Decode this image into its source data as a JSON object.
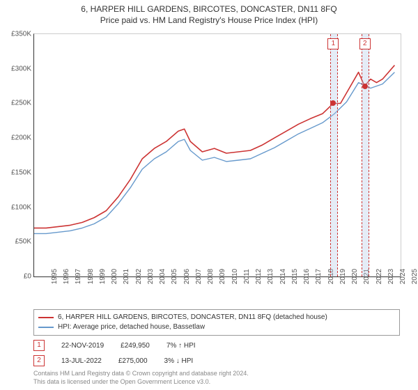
{
  "title": "6, HARPER HILL GARDENS, BIRCOTES, DONCASTER, DN11 8FQ",
  "subtitle": "Price paid vs. HM Land Registry's House Price Index (HPI)",
  "chart": {
    "type": "line",
    "background_color": "#ffffff",
    "axis_color": "#333333",
    "grid_color": "#cccccc",
    "font_color": "#555555",
    "tick_fontsize": 10,
    "x_range": [
      1995,
      2025.5
    ],
    "y_range": [
      0,
      350000
    ],
    "y_ticks": [
      0,
      50000,
      100000,
      150000,
      200000,
      250000,
      300000,
      350000
    ],
    "y_tick_labels": [
      "£0",
      "£50K",
      "£100K",
      "£150K",
      "£200K",
      "£250K",
      "£300K",
      "£350K"
    ],
    "x_ticks": [
      1995,
      1996,
      1997,
      1998,
      1999,
      2000,
      2001,
      2002,
      2003,
      2004,
      2005,
      2006,
      2007,
      2008,
      2009,
      2010,
      2011,
      2012,
      2013,
      2014,
      2015,
      2016,
      2017,
      2018,
      2019,
      2020,
      2021,
      2022,
      2023,
      2024,
      2025
    ],
    "series": [
      {
        "name": "6, HARPER HILL GARDENS, BIRCOTES, DONCASTER, DN11 8FQ (detached house)",
        "color": "#cc3333",
        "line_width": 1.6,
        "data": [
          [
            1995,
            70000
          ],
          [
            1996,
            70000
          ],
          [
            1997,
            72000
          ],
          [
            1998,
            74000
          ],
          [
            1999,
            78000
          ],
          [
            2000,
            85000
          ],
          [
            2001,
            95000
          ],
          [
            2002,
            115000
          ],
          [
            2003,
            140000
          ],
          [
            2004,
            170000
          ],
          [
            2005,
            185000
          ],
          [
            2006,
            195000
          ],
          [
            2007,
            210000
          ],
          [
            2007.5,
            213000
          ],
          [
            2008,
            195000
          ],
          [
            2009,
            180000
          ],
          [
            2010,
            185000
          ],
          [
            2011,
            178000
          ],
          [
            2012,
            180000
          ],
          [
            2013,
            182000
          ],
          [
            2014,
            190000
          ],
          [
            2015,
            200000
          ],
          [
            2016,
            210000
          ],
          [
            2017,
            220000
          ],
          [
            2018,
            228000
          ],
          [
            2019,
            235000
          ],
          [
            2019.9,
            249950
          ],
          [
            2020.5,
            250000
          ],
          [
            2021,
            265000
          ],
          [
            2022,
            295000
          ],
          [
            2022.5,
            275000
          ],
          [
            2023,
            285000
          ],
          [
            2023.5,
            280000
          ],
          [
            2024,
            285000
          ],
          [
            2025,
            305000
          ]
        ]
      },
      {
        "name": "HPI: Average price, detached house, Bassetlaw",
        "color": "#6699cc",
        "line_width": 1.4,
        "data": [
          [
            1995,
            62000
          ],
          [
            1996,
            62000
          ],
          [
            1997,
            64000
          ],
          [
            1998,
            66000
          ],
          [
            1999,
            70000
          ],
          [
            2000,
            76000
          ],
          [
            2001,
            86000
          ],
          [
            2002,
            105000
          ],
          [
            2003,
            128000
          ],
          [
            2004,
            155000
          ],
          [
            2005,
            170000
          ],
          [
            2006,
            180000
          ],
          [
            2007,
            195000
          ],
          [
            2007.5,
            198000
          ],
          [
            2008,
            182000
          ],
          [
            2009,
            168000
          ],
          [
            2010,
            172000
          ],
          [
            2011,
            166000
          ],
          [
            2012,
            168000
          ],
          [
            2013,
            170000
          ],
          [
            2014,
            178000
          ],
          [
            2015,
            186000
          ],
          [
            2016,
            196000
          ],
          [
            2017,
            206000
          ],
          [
            2018,
            214000
          ],
          [
            2019,
            222000
          ],
          [
            2020,
            235000
          ],
          [
            2021,
            252000
          ],
          [
            2022,
            280000
          ],
          [
            2023,
            272000
          ],
          [
            2024,
            278000
          ],
          [
            2025,
            295000
          ]
        ]
      }
    ],
    "markers": [
      {
        "id": "1",
        "x": 2019.9,
        "y": 249950,
        "band_width_years": 0.5,
        "label_y_offset": -12
      },
      {
        "id": "2",
        "x": 2022.53,
        "y": 275000,
        "band_width_years": 0.5,
        "label_y_offset": -12
      }
    ],
    "marker_color": "#cc3333",
    "marker_band_color": "rgba(180,200,230,0.35)"
  },
  "legend": {
    "border_color": "#999999",
    "fontsize": 10,
    "items": [
      {
        "color": "#cc3333",
        "label": "6, HARPER HILL GARDENS, BIRCOTES, DONCASTER, DN11 8FQ (detached house)"
      },
      {
        "color": "#6699cc",
        "label": "HPI: Average price, detached house, Bassetlaw"
      }
    ]
  },
  "sales": [
    {
      "id": "1",
      "date": "22-NOV-2019",
      "price": "£249,950",
      "change": "7% ↑ HPI"
    },
    {
      "id": "2",
      "date": "13-JUL-2022",
      "price": "£275,000",
      "change": "3% ↓ HPI"
    }
  ],
  "attribution_line1": "Contains HM Land Registry data © Crown copyright and database right 2024.",
  "attribution_line2": "This data is licensed under the Open Government Licence v3.0."
}
